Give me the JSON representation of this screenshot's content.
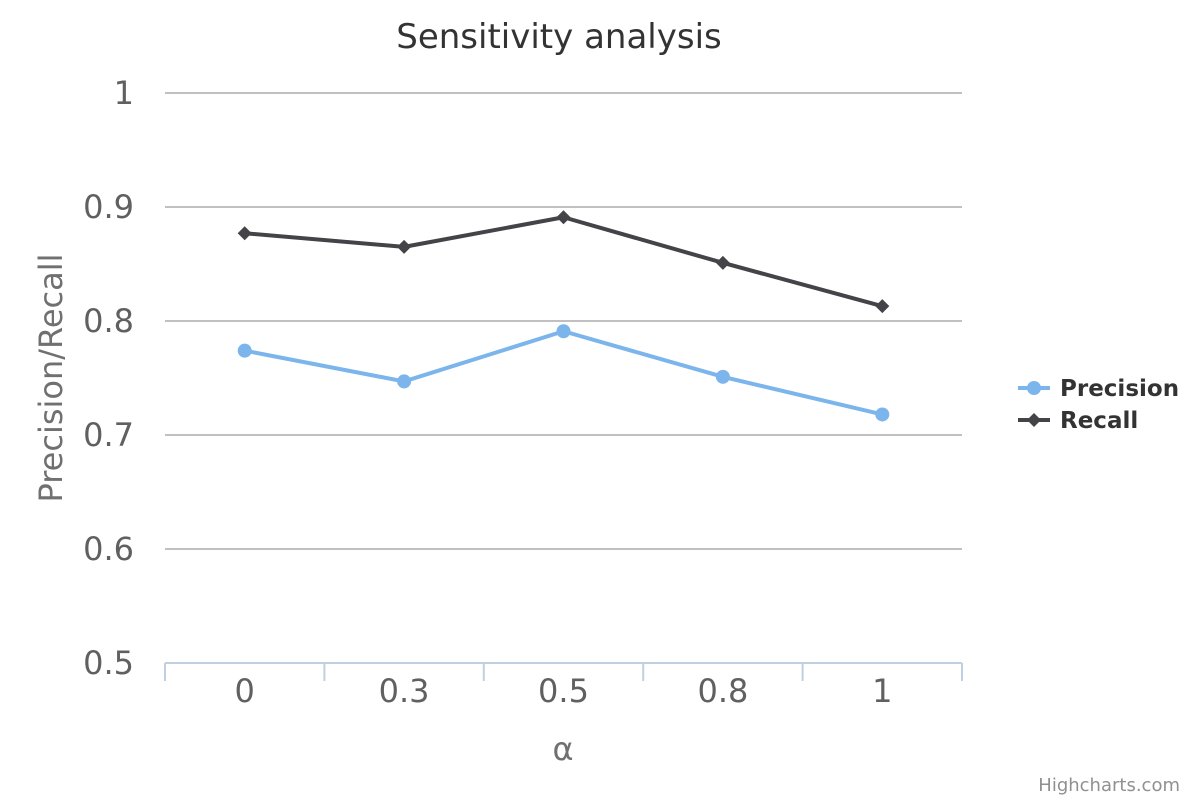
{
  "chart_data": {
    "type": "line",
    "title": "Sensitivity analysis",
    "xlabel": "α",
    "ylabel": "Precision/Recall",
    "categories": [
      "0",
      "0.3",
      "0.5",
      "0.8",
      "1"
    ],
    "ylim": [
      0.5,
      1
    ],
    "yticks": [
      "0.5",
      "0.6",
      "0.7",
      "0.8",
      "0.9",
      "1"
    ],
    "grid": true,
    "legend_position": "right",
    "series": [
      {
        "name": "Precision",
        "values": [
          0.774,
          0.747,
          0.791,
          0.751,
          0.718
        ],
        "color": "#7cb5ec",
        "marker": "circle"
      },
      {
        "name": "Recall",
        "values": [
          0.877,
          0.865,
          0.891,
          0.851,
          0.813
        ],
        "color": "#434348",
        "marker": "diamond"
      }
    ]
  },
  "credits": "Highcharts.com"
}
